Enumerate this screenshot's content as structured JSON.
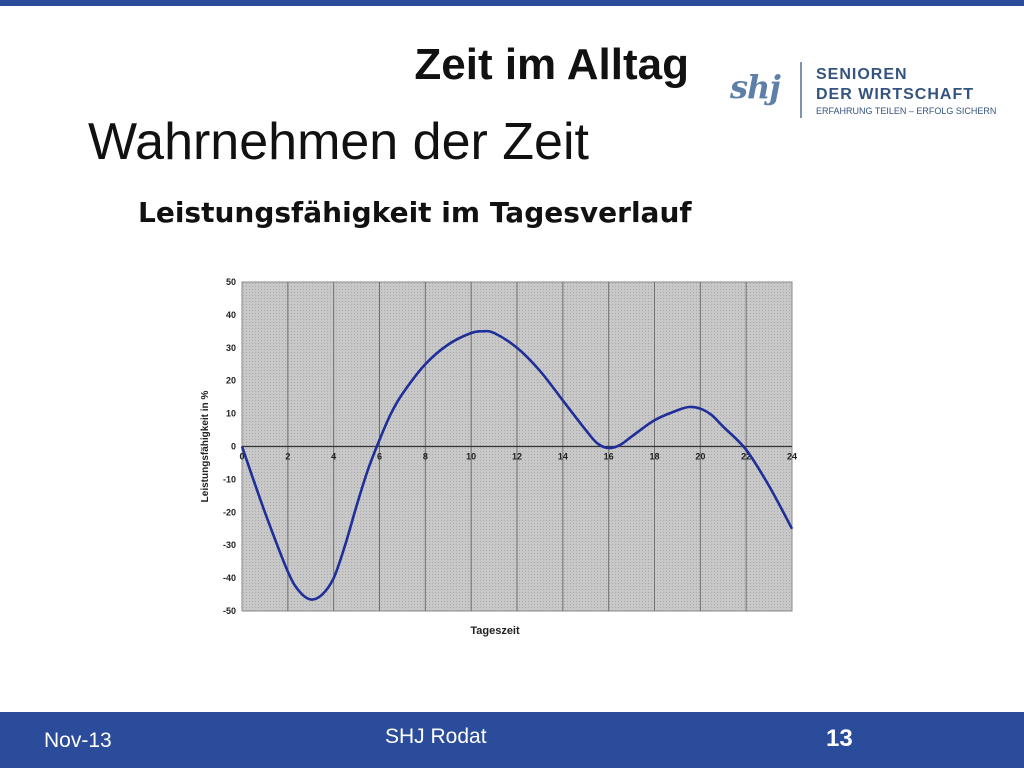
{
  "header": {
    "section_title": "Zeit im Alltag",
    "main_title": "Wahrnehmen der Zeit",
    "sub_title": "Leistungsfähigkeit im Tagesverlauf"
  },
  "logo": {
    "mark": "shj",
    "line1": "SENIOREN",
    "line2": "DER WIRTSCHAFT",
    "line3": "ERFAHRUNG TEILEN – ERFOLG SICHERN"
  },
  "footer": {
    "date": "Nov-13",
    "author": "SHJ Rodat",
    "page_number": "13"
  },
  "colors": {
    "accent": "#2b4c9a",
    "curve": "#1f2f9a",
    "plot_bg": "#c4c4c4"
  },
  "chart_data": {
    "type": "line",
    "title": "",
    "xlabel": "Tageszeit",
    "ylabel": "Leistungsfähigkeit in %",
    "xlim": [
      0,
      24
    ],
    "ylim": [
      -50,
      50
    ],
    "xticks": [
      0,
      2,
      4,
      6,
      8,
      10,
      12,
      14,
      16,
      18,
      20,
      22,
      24
    ],
    "yticks": [
      50,
      40,
      30,
      20,
      10,
      0,
      -10,
      -20,
      -30,
      -40,
      -50
    ],
    "grid": "vertical",
    "series": [
      {
        "x": [
          0,
          1,
          2,
          2.5,
          3,
          3.5,
          4,
          4.5,
          5,
          5.5,
          6,
          6.5,
          7,
          8,
          9,
          10,
          10.5,
          11,
          12,
          13,
          14,
          15,
          15.5,
          16,
          16.5,
          17,
          18,
          19,
          19.5,
          20,
          20.5,
          21,
          22,
          23,
          24
        ],
        "y": [
          0,
          -20,
          -38,
          -44,
          -46.5,
          -45,
          -40,
          -30,
          -18,
          -7,
          2,
          10,
          16,
          25,
          31,
          34.5,
          35,
          34.5,
          30,
          23,
          14,
          5,
          1,
          -0.5,
          0.5,
          3,
          8,
          11,
          12,
          11.5,
          9.5,
          6,
          -1,
          -12,
          -25
        ]
      }
    ]
  }
}
